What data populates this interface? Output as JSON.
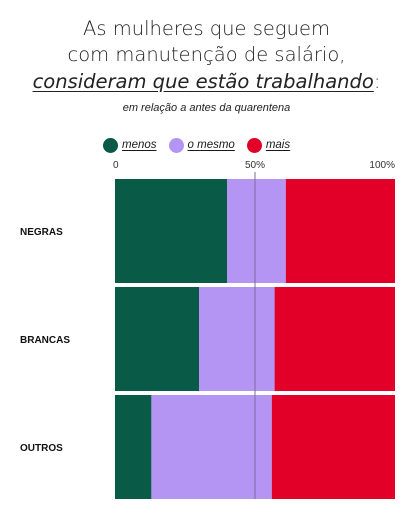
{
  "title": {
    "line1": "As mulheres que seguem",
    "line2": "com manutenção de salário,",
    "line3_emphasis": "consideram que estão trabalhando",
    "line3_suffix": ":"
  },
  "subtitle": "em relação a antes da quarentena",
  "colors": {
    "menos": "#0a5a48",
    "o_mesmo": "#b495f4",
    "mais": "#e30028",
    "midline": "#7a6a9a"
  },
  "chart_data": {
    "type": "bar",
    "orientation": "horizontal",
    "stacked": "percent",
    "categories": [
      "NEGRAS",
      "BRANCAS",
      "OUTROS"
    ],
    "series": [
      {
        "name": "menos",
        "values": [
          40,
          30,
          13
        ]
      },
      {
        "name": "o mesmo",
        "values": [
          21,
          27,
          43
        ]
      },
      {
        "name": "mais",
        "values": [
          39,
          43,
          44
        ]
      }
    ],
    "xlim": [
      0,
      100
    ],
    "ticks": [
      {
        "value": 0,
        "label": "0"
      },
      {
        "value": 50,
        "label": "50%"
      },
      {
        "value": 100,
        "label": "100%"
      }
    ],
    "reference_line": 50,
    "legend_position": "top",
    "grid": false
  }
}
